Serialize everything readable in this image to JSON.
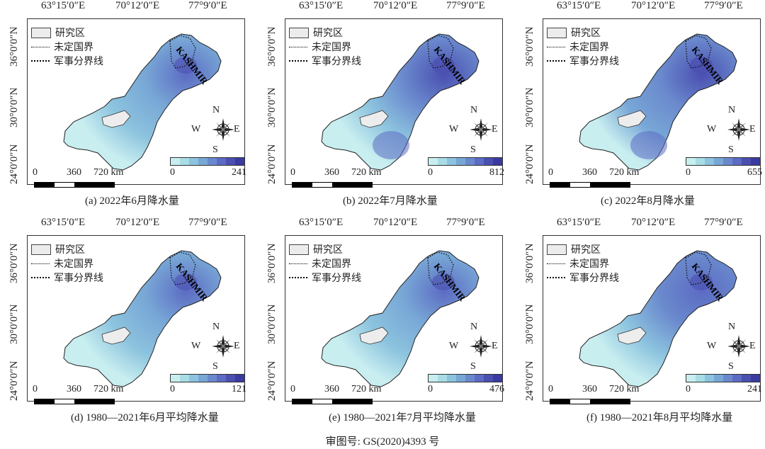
{
  "grid_labels": {
    "lon": [
      "63°15′0″E",
      "70°12′0″E",
      "77°9′0″E"
    ],
    "lat": [
      "36°0′0″N",
      "30°0′0″N",
      "24°0′0″N"
    ]
  },
  "legend": {
    "study_area": "研究区",
    "undetermined_border": "未定国界",
    "military_line": "军事分界线"
  },
  "kashmir_label": "KASHMIR",
  "compass": {
    "n": "N",
    "s": "S",
    "w": "W",
    "e": "E"
  },
  "scale": {
    "zero": "0",
    "mid": "360",
    "end": "720 km"
  },
  "colors": {
    "ramp": [
      "#c8eef0",
      "#a8dde6",
      "#8cc3de",
      "#78a7d6",
      "#6a89cd",
      "#5c6bc3",
      "#4a4fb0",
      "#3a3aa0"
    ],
    "region_base": "#bfe4e8",
    "lake": "#ededed"
  },
  "panels": [
    {
      "caption": "(a) 2022年6月降水量",
      "min": "0",
      "max": "241",
      "intensity": 0.45
    },
    {
      "caption": "(b) 2022年7月降水量",
      "min": "0",
      "max": "812",
      "intensity": 0.7
    },
    {
      "caption": "(c) 2022年8月降水量",
      "min": "0",
      "max": "655",
      "intensity": 0.75
    },
    {
      "caption": "(d) 1980—2021年6月平均降水量",
      "min": "0",
      "max": "121",
      "intensity": 0.4
    },
    {
      "caption": "(e) 1980—2021年7月平均降水量",
      "min": "0",
      "max": "476",
      "intensity": 0.45
    },
    {
      "caption": "(f) 1980—2021年8月平均降水量",
      "min": "0",
      "max": "241",
      "intensity": 0.5
    }
  ],
  "footer": "审图号: GS(2020)4393 号"
}
